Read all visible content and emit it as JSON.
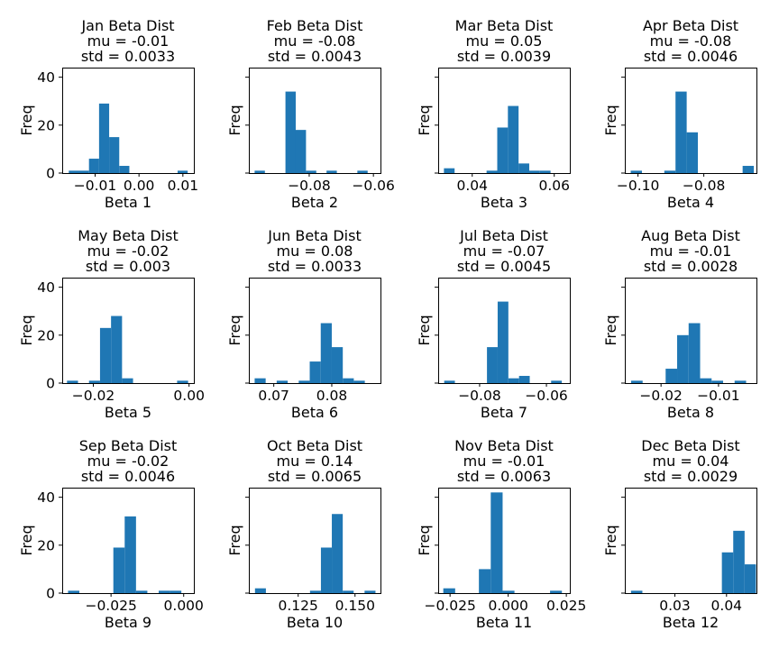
{
  "chart_data": [
    {
      "type": "bar",
      "title": [
        "Jan Beta Dist",
        "mu = -0.01",
        "std = 0.0033"
      ],
      "xlabel": "Beta 1",
      "ylabel": "Freq",
      "show_ylabel": true,
      "show_yticklabels": true,
      "ylim": [
        0,
        44
      ],
      "yticks": [
        0,
        20,
        40
      ],
      "xlim": [
        -0.0175,
        0.0125
      ],
      "xticks": [
        {
          "v": -0.01,
          "label": "−0.01"
        },
        {
          "v": 0.0,
          "label": "0.00"
        },
        {
          "v": 0.01,
          "label": "0.01"
        }
      ],
      "bins": [
        [
          -0.016,
          -0.0137,
          1
        ],
        [
          -0.0137,
          -0.0114,
          1
        ],
        [
          -0.0114,
          -0.0091,
          6
        ],
        [
          -0.0091,
          -0.0068,
          29
        ],
        [
          -0.0068,
          -0.0045,
          15
        ],
        [
          -0.0045,
          -0.0022,
          3
        ],
        [
          0.0088,
          0.0111,
          1
        ]
      ]
    },
    {
      "type": "bar",
      "title": [
        "Feb Beta Dist",
        "mu = -0.08",
        "std = 0.0043"
      ],
      "xlabel": "Beta 2",
      "ylabel": "Freq",
      "show_ylabel": true,
      "show_yticklabels": false,
      "ylim": [
        0,
        44
      ],
      "yticks": [
        0,
        20,
        40
      ],
      "xlim": [
        -0.0988,
        -0.0578
      ],
      "xticks": [
        {
          "v": -0.08,
          "label": "−0.08"
        },
        {
          "v": -0.06,
          "label": "−0.06"
        }
      ],
      "bins": [
        [
          -0.097,
          -0.0938,
          1
        ],
        [
          -0.0874,
          -0.0842,
          34
        ],
        [
          -0.0842,
          -0.081,
          18
        ],
        [
          -0.081,
          -0.0778,
          1
        ],
        [
          -0.0746,
          -0.0714,
          1
        ],
        [
          -0.065,
          -0.0618,
          1
        ]
      ]
    },
    {
      "type": "bar",
      "title": [
        "Mar Beta Dist",
        "mu = 0.05",
        "std = 0.0039"
      ],
      "xlabel": "Beta 3",
      "ylabel": "Freq",
      "show_ylabel": true,
      "show_yticklabels": false,
      "ylim": [
        0,
        44
      ],
      "yticks": [
        0,
        20,
        40
      ],
      "xlim": [
        0.0317,
        0.0638
      ],
      "xticks": [
        {
          "v": 0.04,
          "label": "0.04"
        },
        {
          "v": 0.06,
          "label": "0.06"
        }
      ],
      "bins": [
        [
          0.0331,
          0.0357,
          2
        ],
        [
          0.0435,
          0.0461,
          1
        ],
        [
          0.0461,
          0.0487,
          19
        ],
        [
          0.0487,
          0.0513,
          28
        ],
        [
          0.0513,
          0.0539,
          4
        ],
        [
          0.0539,
          0.0565,
          1
        ],
        [
          0.0565,
          0.0591,
          1
        ]
      ]
    },
    {
      "type": "bar",
      "title": [
        "Apr Beta Dist",
        "mu = -0.08",
        "std = 0.0046"
      ],
      "xlabel": "Beta 4",
      "ylabel": "Freq",
      "show_ylabel": true,
      "show_yticklabels": false,
      "ylim": [
        0,
        44
      ],
      "yticks": [
        0,
        20,
        40
      ],
      "xlim": [
        -0.104,
        -0.064
      ],
      "xticks": [
        {
          "v": -0.1,
          "label": "−0.10"
        },
        {
          "v": -0.08,
          "label": "−0.08"
        }
      ],
      "bins": [
        [
          -0.1022,
          -0.0988,
          1
        ],
        [
          -0.092,
          -0.0886,
          1
        ],
        [
          -0.0886,
          -0.0852,
          34
        ],
        [
          -0.0852,
          -0.0818,
          17
        ],
        [
          -0.0682,
          -0.0648,
          3
        ]
      ]
    },
    {
      "type": "bar",
      "title": [
        "May Beta Dist",
        "mu = -0.02",
        "std = 0.003"
      ],
      "xlabel": "Beta 5",
      "ylabel": "Freq",
      "show_ylabel": true,
      "show_yticklabels": true,
      "ylim": [
        0,
        44
      ],
      "yticks": [
        0,
        20,
        40
      ],
      "xlim": [
        -0.0265,
        0.001
      ],
      "xticks": [
        {
          "v": -0.02,
          "label": "−0.02"
        },
        {
          "v": 0.0,
          "label": "0.00"
        }
      ],
      "bins": [
        [
          -0.0255,
          -0.0232,
          1
        ],
        [
          -0.0209,
          -0.0186,
          1
        ],
        [
          -0.0186,
          -0.0163,
          23
        ],
        [
          -0.0163,
          -0.014,
          28
        ],
        [
          -0.014,
          -0.0117,
          2
        ],
        [
          -0.0025,
          -0.0002,
          1
        ]
      ]
    },
    {
      "type": "bar",
      "title": [
        "Jun Beta Dist",
        "mu = 0.08",
        "std = 0.0033"
      ],
      "xlabel": "Beta 6",
      "ylabel": "Freq",
      "show_ylabel": true,
      "show_yticklabels": false,
      "ylim": [
        0,
        44
      ],
      "yticks": [
        0,
        20,
        40
      ],
      "xlim": [
        0.0657,
        0.0884
      ],
      "xticks": [
        {
          "v": 0.07,
          "label": "0.07"
        },
        {
          "v": 0.08,
          "label": "0.08"
        }
      ],
      "bins": [
        [
          0.0667,
          0.0686,
          2
        ],
        [
          0.0705,
          0.0724,
          1
        ],
        [
          0.0743,
          0.0762,
          1
        ],
        [
          0.0762,
          0.0781,
          9
        ],
        [
          0.0781,
          0.08,
          25
        ],
        [
          0.08,
          0.0819,
          15
        ],
        [
          0.0819,
          0.0838,
          2
        ],
        [
          0.0838,
          0.0857,
          1
        ]
      ]
    },
    {
      "type": "bar",
      "title": [
        "Jul Beta Dist",
        "mu = -0.07",
        "std = 0.0045"
      ],
      "xlabel": "Beta 7",
      "ylabel": "Freq",
      "show_ylabel": true,
      "show_yticklabels": false,
      "ylim": [
        0,
        44
      ],
      "yticks": [
        0,
        20,
        40
      ],
      "xlim": [
        -0.0924,
        -0.053
      ],
      "xticks": [
        {
          "v": -0.08,
          "label": "−0.08"
        },
        {
          "v": -0.06,
          "label": "−0.06"
        }
      ],
      "bins": [
        [
          -0.0906,
          -0.0874,
          1
        ],
        [
          -0.0778,
          -0.0746,
          15
        ],
        [
          -0.0746,
          -0.0714,
          34
        ],
        [
          -0.0714,
          -0.0682,
          2
        ],
        [
          -0.0682,
          -0.065,
          3
        ],
        [
          -0.0586,
          -0.0554,
          1
        ]
      ]
    },
    {
      "type": "bar",
      "title": [
        "Aug Beta Dist",
        "mu = -0.01",
        "std = 0.0028"
      ],
      "xlabel": "Beta 8",
      "ylabel": "Freq",
      "show_ylabel": true,
      "show_yticklabels": false,
      "ylim": [
        0,
        44
      ],
      "yticks": [
        0,
        20,
        40
      ],
      "xlim": [
        -0.0263,
        -0.0034
      ],
      "xticks": [
        {
          "v": -0.02,
          "label": "−0.02"
        },
        {
          "v": -0.01,
          "label": "−0.01"
        }
      ],
      "bins": [
        [
          -0.0252,
          -0.0232,
          1
        ],
        [
          -0.0192,
          -0.0172,
          6
        ],
        [
          -0.0172,
          -0.0152,
          20
        ],
        [
          -0.0152,
          -0.0132,
          25
        ],
        [
          -0.0132,
          -0.0112,
          2
        ],
        [
          -0.0112,
          -0.0092,
          1
        ],
        [
          -0.0072,
          -0.0052,
          1
        ]
      ]
    },
    {
      "type": "bar",
      "title": [
        "Sep Beta Dist",
        "mu = -0.02",
        "std = 0.0046"
      ],
      "xlabel": "Beta 9",
      "ylabel": "Freq",
      "show_ylabel": true,
      "show_yticklabels": true,
      "ylim": [
        0,
        44
      ],
      "yticks": [
        0,
        20,
        40
      ],
      "xlim": [
        -0.0418,
        0.0035
      ],
      "xticks": [
        {
          "v": -0.025,
          "label": "−0.025"
        },
        {
          "v": 0.0,
          "label": "0.000"
        }
      ],
      "bins": [
        [
          -0.0398,
          -0.0359,
          1
        ],
        [
          -0.0242,
          -0.0203,
          19
        ],
        [
          -0.0203,
          -0.0164,
          32
        ],
        [
          -0.0164,
          -0.0125,
          1
        ],
        [
          -0.0086,
          -0.0047,
          1
        ],
        [
          -0.0047,
          -0.0008,
          1
        ]
      ]
    },
    {
      "type": "bar",
      "title": [
        "Oct Beta Dist",
        "mu = 0.14",
        "std = 0.0065"
      ],
      "xlabel": "Beta 10",
      "ylabel": "Freq",
      "show_ylabel": true,
      "show_yticklabels": false,
      "ylim": [
        0,
        44
      ],
      "yticks": [
        0,
        20,
        40
      ],
      "xlim": [
        0.1033,
        0.1612
      ],
      "xticks": [
        {
          "v": 0.125,
          "label": "0.125"
        },
        {
          "v": 0.15,
          "label": "0.150"
        }
      ],
      "bins": [
        [
          0.106,
          0.1108,
          2
        ],
        [
          0.1302,
          0.135,
          1
        ],
        [
          0.135,
          0.1398,
          19
        ],
        [
          0.1398,
          0.1446,
          33
        ],
        [
          0.1446,
          0.1494,
          1
        ],
        [
          0.1542,
          0.159,
          1
        ]
      ]
    },
    {
      "type": "bar",
      "title": [
        "Nov Beta Dist",
        "mu = -0.01",
        "std = 0.0063"
      ],
      "xlabel": "Beta 11",
      "ylabel": "Freq",
      "show_ylabel": true,
      "show_yticklabels": false,
      "ylim": [
        0,
        44
      ],
      "yticks": [
        0,
        20,
        40
      ],
      "xlim": [
        -0.0301,
        0.0265
      ],
      "xticks": [
        {
          "v": -0.025,
          "label": "−0.025"
        },
        {
          "v": 0.0,
          "label": "0.000"
        },
        {
          "v": 0.025,
          "label": "0.025"
        }
      ],
      "bins": [
        [
          -0.0279,
          -0.0228,
          2
        ],
        [
          -0.0126,
          -0.0075,
          10
        ],
        [
          -0.0075,
          -0.0024,
          42
        ],
        [
          -0.0024,
          0.0027,
          1
        ],
        [
          0.018,
          0.0231,
          1
        ]
      ]
    },
    {
      "type": "bar",
      "title": [
        "Dec Beta Dist",
        "mu = 0.04",
        "std = 0.0029"
      ],
      "xlabel": "Beta 12",
      "ylabel": "Freq",
      "show_ylabel": true,
      "show_yticklabels": false,
      "ylim": [
        0,
        44
      ],
      "yticks": [
        0,
        20,
        40
      ],
      "xlim": [
        0.0203,
        0.0458
      ],
      "xticks": [
        {
          "v": 0.03,
          "label": "0.03"
        },
        {
          "v": 0.04,
          "label": "0.04"
        }
      ],
      "bins": [
        [
          0.0215,
          0.0237,
          1
        ],
        [
          0.0391,
          0.0413,
          17
        ],
        [
          0.0413,
          0.0435,
          26
        ],
        [
          0.0435,
          0.0457,
          12
        ]
      ]
    }
  ],
  "bar_color": "#1f77b4"
}
